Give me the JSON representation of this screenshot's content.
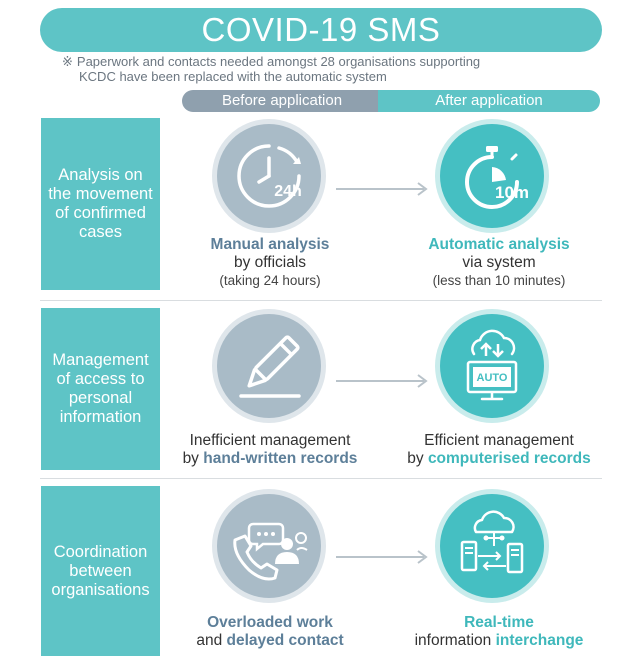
{
  "title": "COVID-19 SMS",
  "note": {
    "mark": "※",
    "line1": "Paperwork and contacts needed amongst 28 organisations supporting",
    "line2": "KCDC have been replaced with the automatic system"
  },
  "columns": {
    "before": "Before application",
    "after": "After application"
  },
  "rows": [
    {
      "label": "Analysis on the movement of confirmed cases",
      "before": {
        "icon": "clock-icon",
        "icon_text": "24h",
        "line1": "Manual analysis",
        "line2": "by officials",
        "line3": "(taking 24 hours)"
      },
      "after": {
        "icon": "stopwatch-icon",
        "icon_text": "10m",
        "line1": "Automatic analysis",
        "line2": "via system",
        "line3": "(less than 10 minutes)"
      }
    },
    {
      "label": "Management of access to personal information",
      "before": {
        "icon": "pencil-icon",
        "line1": "Inefficient management",
        "line2_prefix": "by ",
        "line2_highlight": "hand-written records"
      },
      "after": {
        "icon": "auto-monitor-icon",
        "icon_text": "AUTO",
        "line1": "Efficient management",
        "line2_prefix": "by ",
        "line2_highlight": "computerised records"
      }
    },
    {
      "label": "Coordination between organisations",
      "before": {
        "icon": "phone-people-icon",
        "line1": "Overloaded work",
        "line2_prefix": "and ",
        "line2_highlight": "delayed contact"
      },
      "after": {
        "icon": "cloud-network-icon",
        "line1": "Real-time",
        "line2_prefix": "information ",
        "line2_highlight": "interchange"
      }
    }
  ],
  "colors": {
    "teal": "#5ec4c6",
    "slate": "#8fa0ae",
    "highlight_before": "#5d7f99",
    "highlight_after": "#3fb8bb"
  }
}
